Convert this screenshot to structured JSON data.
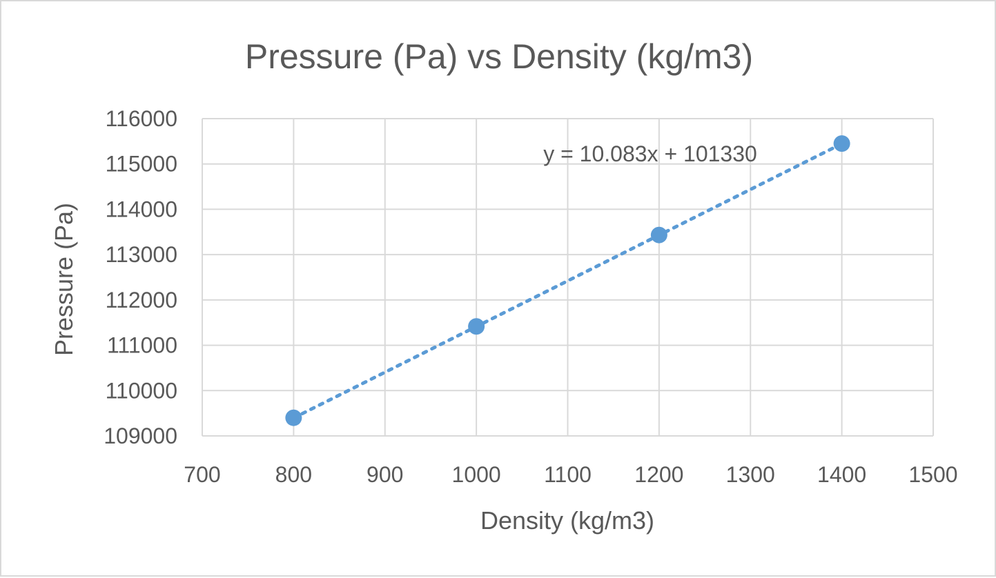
{
  "chart_data": {
    "type": "scatter",
    "title": "Pressure (Pa) vs Density (kg/m3)",
    "xlabel": "Density (kg/m3)",
    "ylabel": "Pressure (Pa)",
    "xlim": [
      700,
      1500
    ],
    "ylim": [
      109000,
      116000
    ],
    "x_ticks": [
      700,
      800,
      900,
      1000,
      1100,
      1200,
      1300,
      1400,
      1500
    ],
    "y_ticks": [
      109000,
      110000,
      111000,
      112000,
      113000,
      114000,
      115000,
      116000
    ],
    "grid": true,
    "legend": "none",
    "series": [
      {
        "x": [
          800,
          1000,
          1200,
          1400
        ],
        "y": [
          109400,
          111416,
          113433,
          115450
        ],
        "color": "#5b9bd5"
      }
    ],
    "trendline": {
      "type": "linear",
      "slope": 10.083,
      "intercept": 101330,
      "style": "dotted",
      "x_range": [
        800,
        1400
      ],
      "equation": "y = 10.083x + 101330"
    }
  }
}
